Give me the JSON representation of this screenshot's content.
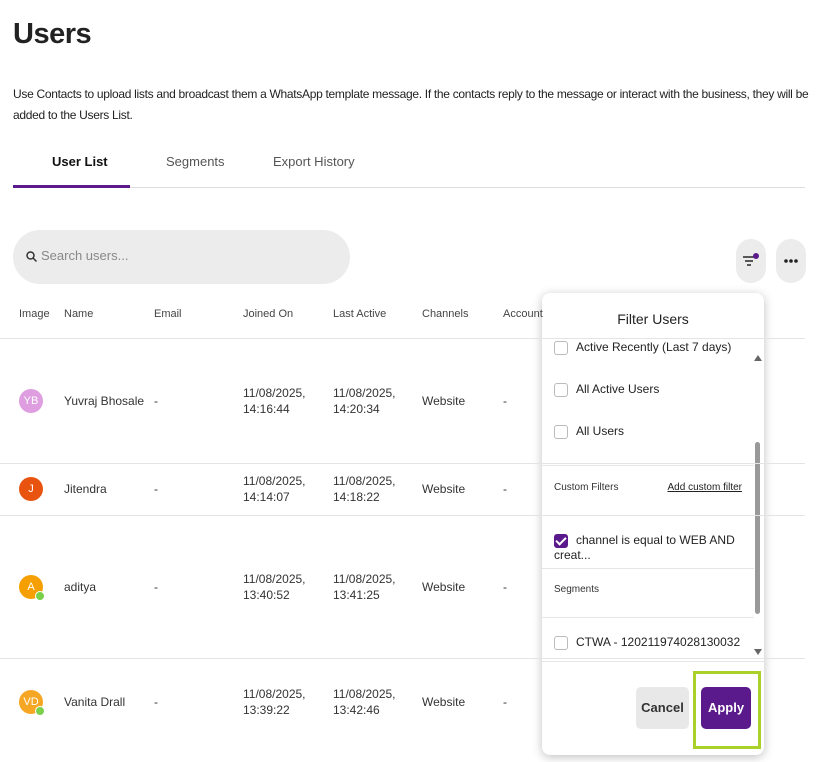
{
  "header": {
    "title": "Users",
    "description": "Use Contacts to upload lists and broadcast them a WhatsApp template message. If the contacts reply to the message or interact with the business, they will be added to the Users List."
  },
  "tabs": [
    "User List",
    "Segments",
    "Export History"
  ],
  "search": {
    "placeholder": "Search users..."
  },
  "table": {
    "columns": [
      "Image",
      "Name",
      "Email",
      "Joined On",
      "Last Active",
      "Channels",
      "Account"
    ],
    "rows": [
      {
        "initials": "YB",
        "avatar_color": "#de9ee0",
        "online": false,
        "name": "Yuvraj Bhosale",
        "email": "-",
        "joined_on": "11/08/2025, 14:16:44",
        "last_active": "11/08/2025, 14:20:34",
        "channel": "Website",
        "account": "-"
      },
      {
        "initials": "J",
        "avatar_color": "#e8540f",
        "online": false,
        "name": "Jitendra",
        "email": "-",
        "joined_on": "11/08/2025, 14:14:07",
        "last_active": "11/08/2025, 14:18:22",
        "channel": "Website",
        "account": "-"
      },
      {
        "initials": "A",
        "avatar_color": "#f5a000",
        "online": true,
        "name": "aditya",
        "email": "-",
        "joined_on": "11/08/2025, 13:40:52",
        "last_active": "11/08/2025, 13:41:25",
        "channel": "Website",
        "account": "-"
      },
      {
        "initials": "VD",
        "avatar_color": "#f5a623",
        "online": true,
        "name": "Vanita Drall",
        "email": "-",
        "joined_on": "11/08/2025, 13:39:22",
        "last_active": "11/08/2025, 13:42:46",
        "channel": "Website",
        "account": "-"
      }
    ]
  },
  "filter": {
    "title": "Filter Users",
    "options": [
      "Active Recently (Last 7 days)",
      "All Active Users",
      "All Users"
    ],
    "custom_filters": {
      "label": "Custom Filters",
      "add_link": "Add custom filter",
      "items": [
        {
          "text": "channel is equal to WEB AND creat...",
          "checked": true
        }
      ]
    },
    "segments": {
      "label": "Segments",
      "items": [
        "CTWA - 120211974028130032"
      ]
    },
    "buttons": {
      "cancel": "Cancel",
      "apply": "Apply"
    }
  }
}
